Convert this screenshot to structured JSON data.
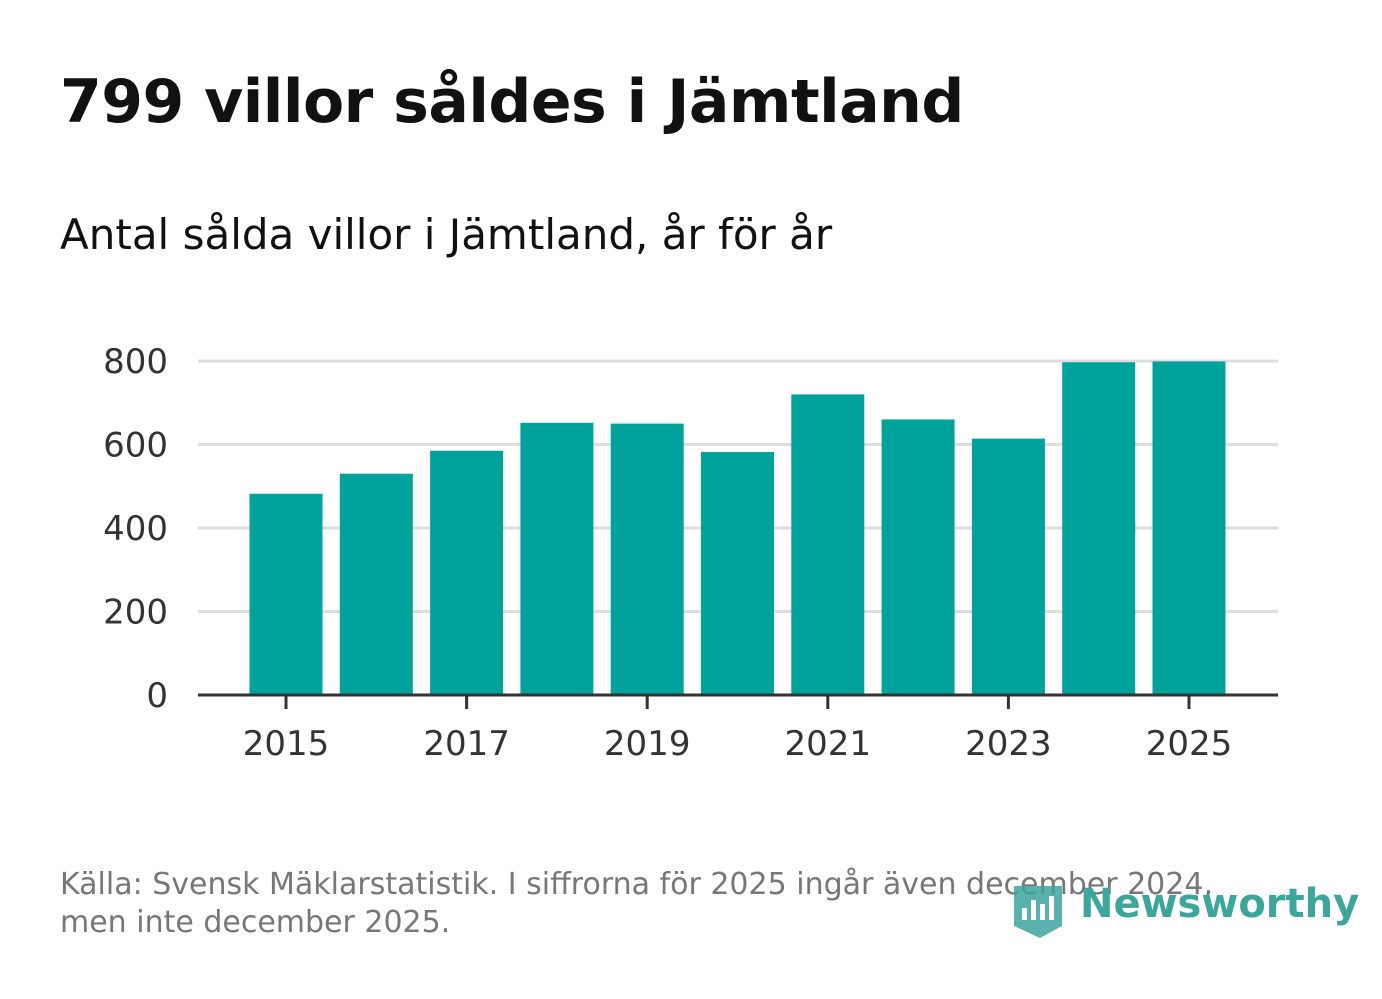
{
  "header": {
    "title": "799 villor såldes i Jämtland",
    "subtitle": "Antal sålda villor i Jämtland, år för år"
  },
  "footer": {
    "source_line1": "Källa: Svensk Mäklarstatistik. I siffrorna för 2025 ingår även december 2024,",
    "source_line2": "men inte december 2025."
  },
  "logo": {
    "text": "Newsworthy",
    "color": "#3ca59c"
  },
  "colors": {
    "bar": "#00a39b",
    "grid": "#dddddd",
    "axis": "#333333"
  },
  "chart_data": {
    "type": "bar",
    "title": "Antal sålda villor i Jämtland, år för år",
    "categories": [
      "2015",
      "2016",
      "2017",
      "2018",
      "2019",
      "2020",
      "2021",
      "2022",
      "2023",
      "2024",
      "2025"
    ],
    "values": [
      482,
      530,
      585,
      652,
      650,
      582,
      720,
      660,
      614,
      797,
      799
    ],
    "x_tick_labels": [
      "2015",
      "2017",
      "2019",
      "2021",
      "2023",
      "2025"
    ],
    "y_ticks": [
      0,
      200,
      400,
      600,
      800
    ],
    "ylim": [
      0,
      800
    ],
    "xlabel": "",
    "ylabel": "",
    "grid": true
  }
}
